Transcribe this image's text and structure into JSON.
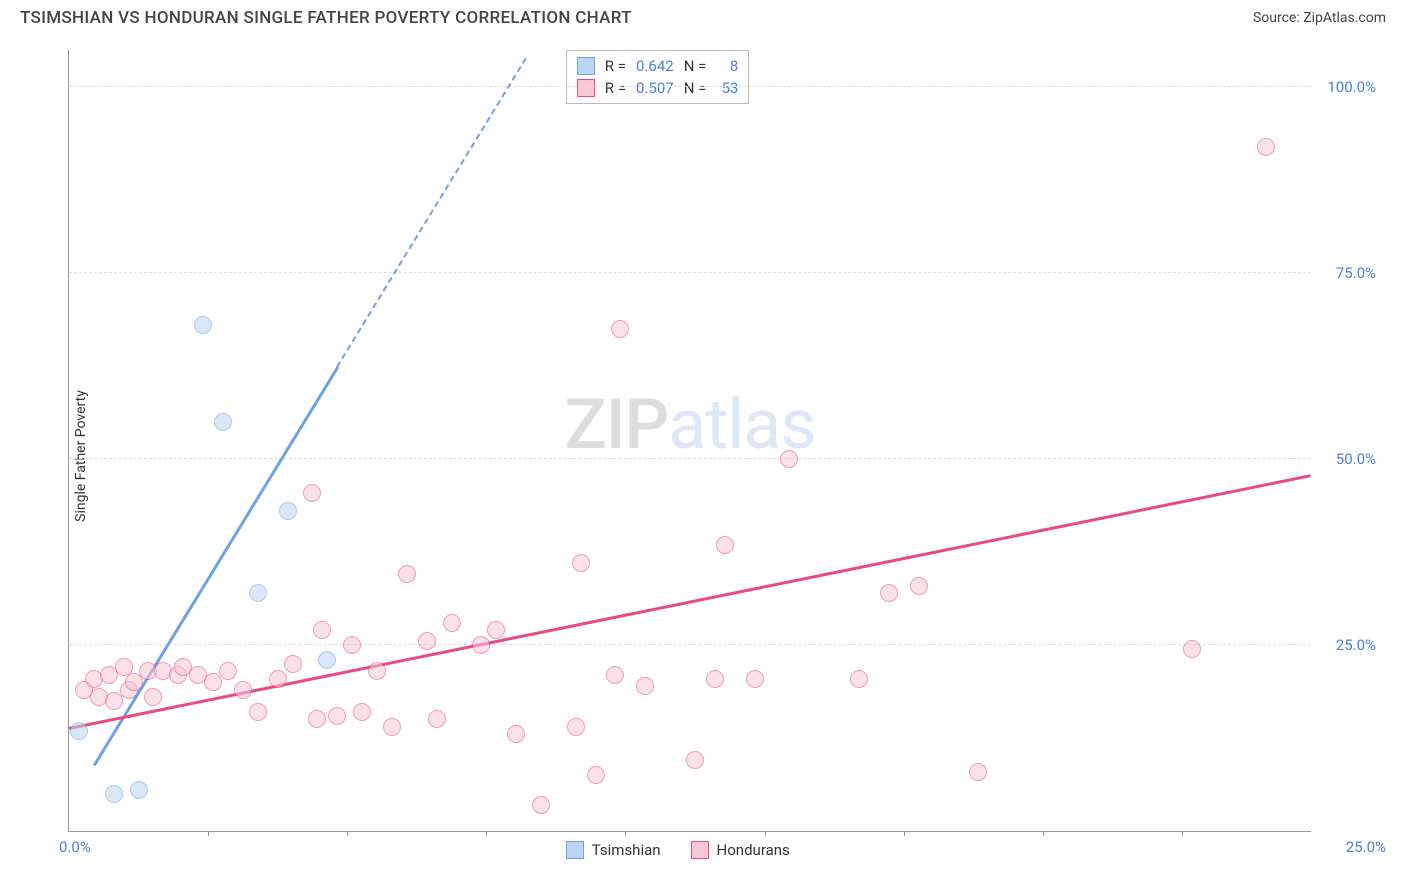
{
  "title": "TSIMSHIAN VS HONDURAN SINGLE FATHER POVERTY CORRELATION CHART",
  "source_label": "Source:",
  "source_name": "ZipAtlas.com",
  "ylabel": "Single Father Poverty",
  "watermark_a": "ZIP",
  "watermark_b": "atlas",
  "chart": {
    "xlim": [
      0,
      25
    ],
    "ylim": [
      0,
      105
    ],
    "x_tick_labels": [
      "0.0%",
      "25.0%"
    ],
    "x_minor_ticks": [
      2.8,
      5.6,
      8.4,
      11.2,
      14,
      16.8,
      19.6,
      22.4
    ],
    "y_ticks": [
      25,
      50,
      75,
      100
    ],
    "y_tick_labels": [
      "25.0%",
      "50.0%",
      "75.0%",
      "100.0%"
    ],
    "background": "#ffffff",
    "grid_color": "#dddddd",
    "axis_color": "#999999",
    "tick_label_color": "#4a7fd8",
    "marker_radius": 9,
    "marker_opacity": 0.55
  },
  "series": {
    "tsimshian": {
      "label": "Tsimshian",
      "color_fill": "#bcd5f2",
      "color_stroke": "#6fa2e0",
      "R": "0.642",
      "N": "8",
      "trend": {
        "x1": 0.5,
        "y1": 9,
        "x2": 9.2,
        "y2": 104,
        "dash_from_x": 5.4
      },
      "points": [
        [
          0.2,
          13.5
        ],
        [
          0.9,
          5
        ],
        [
          1.4,
          5.5
        ],
        [
          2.7,
          68
        ],
        [
          3.1,
          55
        ],
        [
          3.8,
          32
        ],
        [
          4.4,
          43
        ],
        [
          5.2,
          23
        ]
      ]
    },
    "hondurans": {
      "label": "Hondurans",
      "color_fill": "#f7c7d5",
      "color_stroke": "#e94b7a",
      "R": "0.507",
      "N": "53",
      "trend": {
        "x1": 0,
        "y1": 14,
        "x2": 25,
        "y2": 48
      },
      "points": [
        [
          0.3,
          19
        ],
        [
          0.5,
          20.5
        ],
        [
          0.6,
          18
        ],
        [
          0.8,
          21
        ],
        [
          0.9,
          17.5
        ],
        [
          1.1,
          22
        ],
        [
          1.2,
          19
        ],
        [
          1.3,
          20
        ],
        [
          1.6,
          21.5
        ],
        [
          1.7,
          18
        ],
        [
          1.9,
          21.5
        ],
        [
          2.2,
          21
        ],
        [
          2.3,
          22
        ],
        [
          2.6,
          21
        ],
        [
          2.9,
          20
        ],
        [
          3.2,
          21.5
        ],
        [
          3.5,
          19
        ],
        [
          3.8,
          16
        ],
        [
          4.2,
          20.5
        ],
        [
          4.5,
          22.5
        ],
        [
          4.9,
          45.5
        ],
        [
          5.0,
          15
        ],
        [
          5.1,
          27
        ],
        [
          5.4,
          15.5
        ],
        [
          5.7,
          25
        ],
        [
          5.9,
          16
        ],
        [
          6.2,
          21.5
        ],
        [
          6.5,
          14
        ],
        [
          6.8,
          34.5
        ],
        [
          7.2,
          25.5
        ],
        [
          7.4,
          15
        ],
        [
          7.7,
          28
        ],
        [
          8.3,
          25
        ],
        [
          8.6,
          27
        ],
        [
          9.0,
          13
        ],
        [
          9.5,
          3.5
        ],
        [
          10.2,
          14
        ],
        [
          10.3,
          36
        ],
        [
          10.6,
          7.5
        ],
        [
          11.0,
          21
        ],
        [
          11.1,
          67.5
        ],
        [
          11.6,
          19.5
        ],
        [
          12.6,
          9.5
        ],
        [
          13.0,
          20.5
        ],
        [
          13.2,
          38.5
        ],
        [
          13.8,
          20.5
        ],
        [
          14.5,
          50
        ],
        [
          15.9,
          20.5
        ],
        [
          16.5,
          32
        ],
        [
          17.1,
          33
        ],
        [
          18.3,
          8
        ],
        [
          22.6,
          24.5
        ],
        [
          24.1,
          92
        ]
      ]
    }
  },
  "legend_corr": {
    "R_label": "R =",
    "N_label": "N ="
  }
}
